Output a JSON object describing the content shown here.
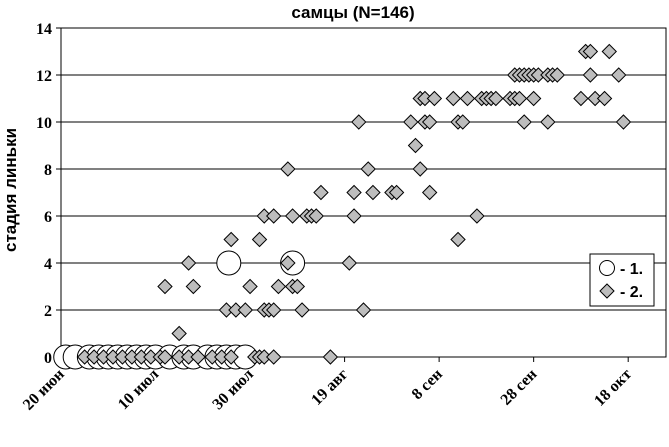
{
  "chart_data": {
    "type": "scatter",
    "title": "самцы  (N=146)",
    "ylabel": "стадия линьки",
    "xlabel": "",
    "xlim": [
      0,
      128
    ],
    "ylim": [
      0,
      14
    ],
    "yticks": [
      0,
      2,
      4,
      6,
      8,
      10,
      12,
      14
    ],
    "xticks": [
      {
        "day": 0,
        "label": "20 июн"
      },
      {
        "day": 20,
        "label": "10 июл"
      },
      {
        "day": 40,
        "label": "30 июл"
      },
      {
        "day": 60,
        "label": "19 авг"
      },
      {
        "day": 80,
        "label": "8 сен"
      },
      {
        "day": 100,
        "label": "28 сен"
      },
      {
        "day": 120,
        "label": "18 окт"
      }
    ],
    "grid": "horizontal",
    "legend_position": "right",
    "series": [
      {
        "name": "- 1.",
        "marker": "circle",
        "color": "#ffffff",
        "points": [
          [
            1,
            0
          ],
          [
            3,
            0
          ],
          [
            6,
            0
          ],
          [
            8,
            0
          ],
          [
            10,
            0
          ],
          [
            12,
            0
          ],
          [
            14,
            0
          ],
          [
            16,
            0
          ],
          [
            18,
            0
          ],
          [
            20,
            0
          ],
          [
            23,
            0
          ],
          [
            26,
            0
          ],
          [
            28,
            0
          ],
          [
            31,
            0
          ],
          [
            33,
            0
          ],
          [
            35,
            0
          ],
          [
            37,
            0
          ],
          [
            39,
            0
          ],
          [
            35.5,
            4
          ],
          [
            49,
            4
          ]
        ]
      },
      {
        "name": "- 2.",
        "marker": "diamond",
        "color": "#bdbdbd",
        "points": [
          [
            5,
            0
          ],
          [
            7,
            0
          ],
          [
            9,
            0
          ],
          [
            11,
            0
          ],
          [
            13,
            0
          ],
          [
            15,
            0
          ],
          [
            17,
            0
          ],
          [
            19,
            0
          ],
          [
            21,
            0
          ],
          [
            22,
            0
          ],
          [
            25,
            0
          ],
          [
            27,
            0
          ],
          [
            29,
            0
          ],
          [
            32,
            0
          ],
          [
            34,
            0
          ],
          [
            36,
            0
          ],
          [
            41,
            0
          ],
          [
            42,
            0
          ],
          [
            43,
            0
          ],
          [
            45,
            0
          ],
          [
            57,
            0
          ],
          [
            22,
            3
          ],
          [
            25,
            1
          ],
          [
            27,
            4
          ],
          [
            28,
            3
          ],
          [
            35,
            2
          ],
          [
            36,
            5
          ],
          [
            37,
            2
          ],
          [
            39,
            2
          ],
          [
            40,
            3
          ],
          [
            42,
            5
          ],
          [
            43,
            2
          ],
          [
            43,
            6
          ],
          [
            44,
            2
          ],
          [
            45,
            2
          ],
          [
            45,
            6
          ],
          [
            46,
            3
          ],
          [
            48,
            4
          ],
          [
            48,
            8
          ],
          [
            49,
            3
          ],
          [
            49,
            6
          ],
          [
            50,
            3
          ],
          [
            51,
            2
          ],
          [
            52,
            6
          ],
          [
            53,
            6
          ],
          [
            54,
            6
          ],
          [
            55,
            7
          ],
          [
            61,
            4
          ],
          [
            62,
            6
          ],
          [
            62,
            7
          ],
          [
            63,
            10
          ],
          [
            64,
            2
          ],
          [
            65,
            8
          ],
          [
            66,
            7
          ],
          [
            70,
            7
          ],
          [
            71,
            7
          ],
          [
            74,
            10
          ],
          [
            75,
            9
          ],
          [
            76,
            11
          ],
          [
            76,
            8
          ],
          [
            77,
            11
          ],
          [
            77,
            10
          ],
          [
            78,
            10
          ],
          [
            78,
            7
          ],
          [
            79,
            11
          ],
          [
            83,
            11
          ],
          [
            84,
            10
          ],
          [
            84,
            5
          ],
          [
            85,
            10
          ],
          [
            86,
            11
          ],
          [
            88,
            6
          ],
          [
            89,
            11
          ],
          [
            90,
            11
          ],
          [
            91,
            11
          ],
          [
            92,
            11
          ],
          [
            95,
            11
          ],
          [
            96,
            12
          ],
          [
            96,
            11
          ],
          [
            97,
            11
          ],
          [
            97,
            12
          ],
          [
            98,
            12
          ],
          [
            98,
            10
          ],
          [
            99,
            12
          ],
          [
            100,
            12
          ],
          [
            100,
            11
          ],
          [
            101,
            12
          ],
          [
            103,
            12
          ],
          [
            103,
            10
          ],
          [
            104,
            12
          ],
          [
            105,
            12
          ],
          [
            110,
            11
          ],
          [
            111,
            13
          ],
          [
            112,
            13
          ],
          [
            112,
            12
          ],
          [
            113,
            11
          ],
          [
            115,
            11
          ],
          [
            116,
            13
          ],
          [
            118,
            12
          ],
          [
            119,
            10
          ]
        ]
      }
    ]
  }
}
